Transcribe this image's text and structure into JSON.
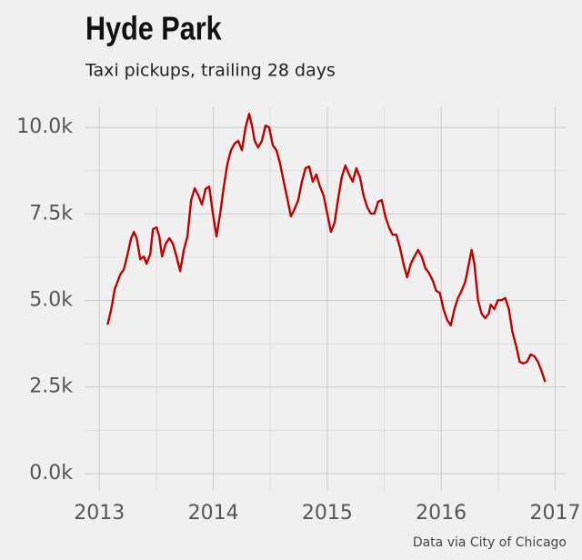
{
  "chart_data": {
    "type": "line",
    "title": "Hyde Park",
    "subtitle": "Taxi pickups, trailing 28 days",
    "source": "Data via City of Chicago",
    "color": "#c00000",
    "grid": true,
    "xlim": [
      2012.87,
      2017.1
    ],
    "ylim": [
      -500,
      10580
    ],
    "xticks": [
      2013,
      2014,
      2015,
      2016,
      2017
    ],
    "yticks": [
      {
        "value": 0,
        "label": "0.0k"
      },
      {
        "value": 2500,
        "label": "2.5k"
      },
      {
        "value": 5000,
        "label": "5.0k"
      },
      {
        "value": 7500,
        "label": "7.5k"
      },
      {
        "value": 10000,
        "label": "10.0k"
      }
    ],
    "minor_xticks": [
      2013.5,
      2014.5,
      2015.5,
      2016.5
    ],
    "minor_yticks": [
      1250,
      3750,
      6250,
      8750
    ],
    "x": [
      2013.072,
      2013.104,
      2013.135,
      2013.183,
      2013.215,
      2013.247,
      2013.279,
      2013.303,
      2013.327,
      2013.359,
      2013.39,
      2013.414,
      2013.446,
      2013.47,
      2013.502,
      2013.526,
      2013.55,
      2013.582,
      2013.614,
      2013.645,
      2013.677,
      2013.709,
      2013.741,
      2013.773,
      2013.805,
      2013.837,
      2013.869,
      2013.9,
      2013.932,
      2013.964,
      2013.996,
      2014.028,
      2014.06,
      2014.092,
      2014.124,
      2014.155,
      2014.187,
      2014.219,
      2014.251,
      2014.283,
      2014.315,
      2014.339,
      2014.363,
      2014.394,
      2014.426,
      2014.458,
      2014.49,
      2014.522,
      2014.554,
      2014.586,
      2014.618,
      2014.649,
      2014.681,
      2014.713,
      2014.745,
      2014.777,
      2014.809,
      2014.841,
      2014.873,
      2014.904,
      2014.936,
      2014.968,
      2015.0,
      2015.032,
      2015.064,
      2015.096,
      2015.127,
      2015.159,
      2015.191,
      2015.223,
      2015.255,
      2015.287,
      2015.319,
      2015.351,
      2015.382,
      2015.414,
      2015.446,
      2015.478,
      2015.51,
      2015.542,
      2015.574,
      2015.606,
      2015.637,
      2015.669,
      2015.701,
      2015.733,
      2015.765,
      2015.797,
      2015.829,
      2015.861,
      2015.892,
      2015.924,
      2015.956,
      2015.988,
      2016.02,
      2016.052,
      2016.084,
      2016.116,
      2016.147,
      2016.179,
      2016.211,
      2016.243,
      2016.267,
      2016.291,
      2016.323,
      2016.355,
      2016.386,
      2016.418,
      2016.434,
      2016.466,
      2016.498,
      2016.53,
      2016.562,
      2016.594,
      2016.625,
      2016.657,
      2016.689,
      2016.721,
      2016.753,
      2016.785,
      2016.817,
      2016.849,
      2016.88,
      2016.912
    ],
    "values": [
      4300,
      4750,
      5330,
      5750,
      5900,
      6330,
      6800,
      6980,
      6800,
      6190,
      6270,
      6060,
      6330,
      7060,
      7110,
      6850,
      6270,
      6640,
      6800,
      6640,
      6270,
      5850,
      6460,
      6850,
      7900,
      8240,
      8030,
      7770,
      8220,
      8290,
      7510,
      6850,
      7510,
      8290,
      8950,
      9340,
      9530,
      9610,
      9340,
      10000,
      10390,
      10050,
      9610,
      9420,
      9610,
      10050,
      10000,
      9480,
      9340,
      8950,
      8430,
      7950,
      7430,
      7640,
      7900,
      8430,
      8820,
      8870,
      8430,
      8640,
      8290,
      8030,
      7510,
      6980,
      7240,
      7950,
      8560,
      8900,
      8640,
      8430,
      8820,
      8560,
      8030,
      7690,
      7510,
      7510,
      7850,
      7900,
      7430,
      7110,
      6900,
      6900,
      6540,
      6060,
      5670,
      6060,
      6270,
      6460,
      6270,
      5930,
      5800,
      5590,
      5280,
      5220,
      4750,
      4440,
      4280,
      4750,
      5070,
      5280,
      5540,
      6060,
      6460,
      6060,
      5010,
      4620,
      4490,
      4620,
      4880,
      4750,
      5010,
      5010,
      5070,
      4750,
      4090,
      3700,
      3230,
      3180,
      3230,
      3440,
      3390,
      3230,
      2970,
      2650
    ]
  }
}
